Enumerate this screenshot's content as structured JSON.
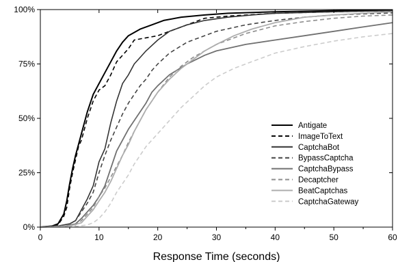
{
  "chart_data": {
    "type": "line",
    "title": "",
    "xlabel": "Response Time (seconds)",
    "ylabel": "",
    "xlim": [
      0,
      60
    ],
    "ylim": [
      0,
      100
    ],
    "x_ticks": [
      0,
      10,
      20,
      30,
      40,
      50,
      60
    ],
    "x_tick_labels": [
      "0",
      "10",
      "20",
      "30",
      "40",
      "50",
      "60"
    ],
    "y_ticks": [
      0,
      25,
      50,
      75,
      100
    ],
    "y_tick_labels": [
      "0%",
      "25%",
      "50%",
      "75%",
      "100%"
    ],
    "grid": false,
    "legend_position": "lower-right",
    "series": [
      {
        "name": "Antigate",
        "color": "#000000",
        "dash": "solid",
        "points": [
          [
            0,
            0
          ],
          [
            2,
            0.5
          ],
          [
            3,
            1.5
          ],
          [
            4,
            6
          ],
          [
            4.5,
            12
          ],
          [
            5,
            20
          ],
          [
            5.5,
            27
          ],
          [
            6,
            33
          ],
          [
            6.5,
            38
          ],
          [
            7,
            43
          ],
          [
            7.5,
            48
          ],
          [
            8,
            53
          ],
          [
            9,
            61
          ],
          [
            10,
            66
          ],
          [
            11,
            71
          ],
          [
            12,
            76
          ],
          [
            13,
            81
          ],
          [
            14,
            85
          ],
          [
            15,
            88
          ],
          [
            17,
            91
          ],
          [
            19,
            93
          ],
          [
            21,
            95
          ],
          [
            24,
            96.5
          ],
          [
            28,
            97.5
          ],
          [
            32,
            98.3
          ],
          [
            40,
            99
          ],
          [
            50,
            99.5
          ],
          [
            60,
            99.8
          ]
        ]
      },
      {
        "name": "ImageToText",
        "color": "#000000",
        "dash": "6,4",
        "points": [
          [
            0,
            0
          ],
          [
            2,
            0.5
          ],
          [
            3,
            1
          ],
          [
            4,
            5
          ],
          [
            4.5,
            9
          ],
          [
            5,
            18
          ],
          [
            5.5,
            25
          ],
          [
            6,
            31
          ],
          [
            6.5,
            37
          ],
          [
            7,
            40
          ],
          [
            8,
            50
          ],
          [
            9,
            58
          ],
          [
            10,
            63
          ],
          [
            11,
            65
          ],
          [
            12,
            70
          ],
          [
            13,
            76
          ],
          [
            14,
            79
          ],
          [
            15,
            82
          ],
          [
            16,
            86
          ],
          [
            18,
            87
          ],
          [
            20,
            88
          ],
          [
            22,
            90
          ],
          [
            25,
            93
          ],
          [
            28,
            96
          ],
          [
            32,
            97
          ],
          [
            40,
            98.3
          ],
          [
            50,
            99
          ],
          [
            60,
            99.5
          ]
        ]
      },
      {
        "name": "CaptchaBot",
        "color": "#333333",
        "dash": "solid",
        "points": [
          [
            0,
            0
          ],
          [
            3,
            0.5
          ],
          [
            5,
            1.5
          ],
          [
            6,
            3
          ],
          [
            7,
            8
          ],
          [
            8,
            13
          ],
          [
            9,
            19
          ],
          [
            10,
            30
          ],
          [
            11,
            36
          ],
          [
            12,
            48
          ],
          [
            13,
            58
          ],
          [
            14,
            66
          ],
          [
            15,
            70
          ],
          [
            16,
            75
          ],
          [
            17,
            78
          ],
          [
            18,
            81
          ],
          [
            20,
            86
          ],
          [
            22,
            90
          ],
          [
            25,
            93
          ],
          [
            28,
            95
          ],
          [
            32,
            96.5
          ],
          [
            36,
            97.5
          ],
          [
            40,
            98.3
          ],
          [
            50,
            99
          ],
          [
            60,
            99.5
          ]
        ]
      },
      {
        "name": "BypassCaptcha",
        "color": "#444444",
        "dash": "6,4",
        "points": [
          [
            0,
            0
          ],
          [
            3,
            0.5
          ],
          [
            5,
            1.5
          ],
          [
            6,
            3
          ],
          [
            7,
            7
          ],
          [
            8,
            11
          ],
          [
            9,
            16
          ],
          [
            10,
            25
          ],
          [
            11,
            33
          ],
          [
            12,
            40
          ],
          [
            13,
            46
          ],
          [
            14,
            52
          ],
          [
            15,
            57
          ],
          [
            16,
            61
          ],
          [
            17,
            65
          ],
          [
            18,
            68
          ],
          [
            19,
            72
          ],
          [
            20,
            75
          ],
          [
            22,
            80
          ],
          [
            25,
            85
          ],
          [
            30,
            90
          ],
          [
            35,
            93
          ],
          [
            40,
            95
          ],
          [
            45,
            96.5
          ],
          [
            50,
            97.5
          ],
          [
            60,
            98.5
          ]
        ]
      },
      {
        "name": "CaptchaBypass",
        "color": "#707070",
        "dash": "solid",
        "points": [
          [
            0,
            0
          ],
          [
            4,
            0.3
          ],
          [
            6,
            1.5
          ],
          [
            7,
            4
          ],
          [
            8,
            7
          ],
          [
            9,
            10
          ],
          [
            10,
            14
          ],
          [
            11,
            19
          ],
          [
            12,
            27
          ],
          [
            13,
            35
          ],
          [
            14,
            40
          ],
          [
            15,
            45
          ],
          [
            16,
            49
          ],
          [
            17,
            53
          ],
          [
            18,
            57
          ],
          [
            19,
            62
          ],
          [
            20,
            65
          ],
          [
            22,
            70
          ],
          [
            25,
            75
          ],
          [
            28,
            79
          ],
          [
            30,
            81
          ],
          [
            35,
            84
          ],
          [
            40,
            86
          ],
          [
            45,
            88
          ],
          [
            50,
            90
          ],
          [
            55,
            92
          ],
          [
            60,
            94
          ]
        ]
      },
      {
        "name": "Decaptcher",
        "color": "#8e8e8e",
        "dash": "6,4",
        "points": [
          [
            0,
            0
          ],
          [
            4,
            0.3
          ],
          [
            6,
            1
          ],
          [
            7,
            3
          ],
          [
            8,
            6
          ],
          [
            9,
            9
          ],
          [
            10,
            14
          ],
          [
            11,
            18
          ],
          [
            12,
            23
          ],
          [
            13,
            28
          ],
          [
            14,
            33
          ],
          [
            15,
            39
          ],
          [
            16,
            44
          ],
          [
            17,
            49
          ],
          [
            18,
            54
          ],
          [
            20,
            62
          ],
          [
            22,
            69
          ],
          [
            24,
            74
          ],
          [
            26,
            78
          ],
          [
            28,
            81
          ],
          [
            30,
            84
          ],
          [
            35,
            89
          ],
          [
            40,
            92.5
          ],
          [
            45,
            94.5
          ],
          [
            50,
            96
          ],
          [
            55,
            97
          ],
          [
            60,
            97.5
          ]
        ]
      },
      {
        "name": "BeatCaptchas",
        "color": "#adadad",
        "dash": "solid",
        "points": [
          [
            0,
            0
          ],
          [
            5,
            0.5
          ],
          [
            7,
            2
          ],
          [
            8,
            5
          ],
          [
            9,
            8
          ],
          [
            10,
            12
          ],
          [
            11,
            16
          ],
          [
            12,
            21
          ],
          [
            13,
            27
          ],
          [
            14,
            33
          ],
          [
            15,
            38
          ],
          [
            16,
            44
          ],
          [
            17,
            49
          ],
          [
            18,
            54
          ],
          [
            19,
            58
          ],
          [
            20,
            62
          ],
          [
            22,
            68
          ],
          [
            24,
            73
          ],
          [
            26,
            77
          ],
          [
            28,
            81
          ],
          [
            30,
            84
          ],
          [
            33,
            88
          ],
          [
            36,
            91
          ],
          [
            40,
            94
          ],
          [
            45,
            96.5
          ],
          [
            50,
            97.5
          ],
          [
            55,
            98.3
          ],
          [
            60,
            99
          ]
        ]
      },
      {
        "name": "CaptchaGateway",
        "color": "#cccccc",
        "dash": "6,4",
        "points": [
          [
            0,
            0
          ],
          [
            6,
            0.3
          ],
          [
            8,
            1
          ],
          [
            9,
            2
          ],
          [
            10,
            4
          ],
          [
            11,
            7
          ],
          [
            12,
            11
          ],
          [
            13,
            16
          ],
          [
            14,
            20
          ],
          [
            15,
            24
          ],
          [
            16,
            29
          ],
          [
            17,
            33
          ],
          [
            18,
            37
          ],
          [
            19,
            40
          ],
          [
            20,
            43
          ],
          [
            22,
            49
          ],
          [
            24,
            55
          ],
          [
            26,
            60
          ],
          [
            28,
            65
          ],
          [
            30,
            69
          ],
          [
            33,
            73
          ],
          [
            36,
            76
          ],
          [
            40,
            80
          ],
          [
            45,
            83
          ],
          [
            50,
            85.5
          ],
          [
            55,
            87.5
          ],
          [
            60,
            89
          ]
        ]
      }
    ]
  }
}
